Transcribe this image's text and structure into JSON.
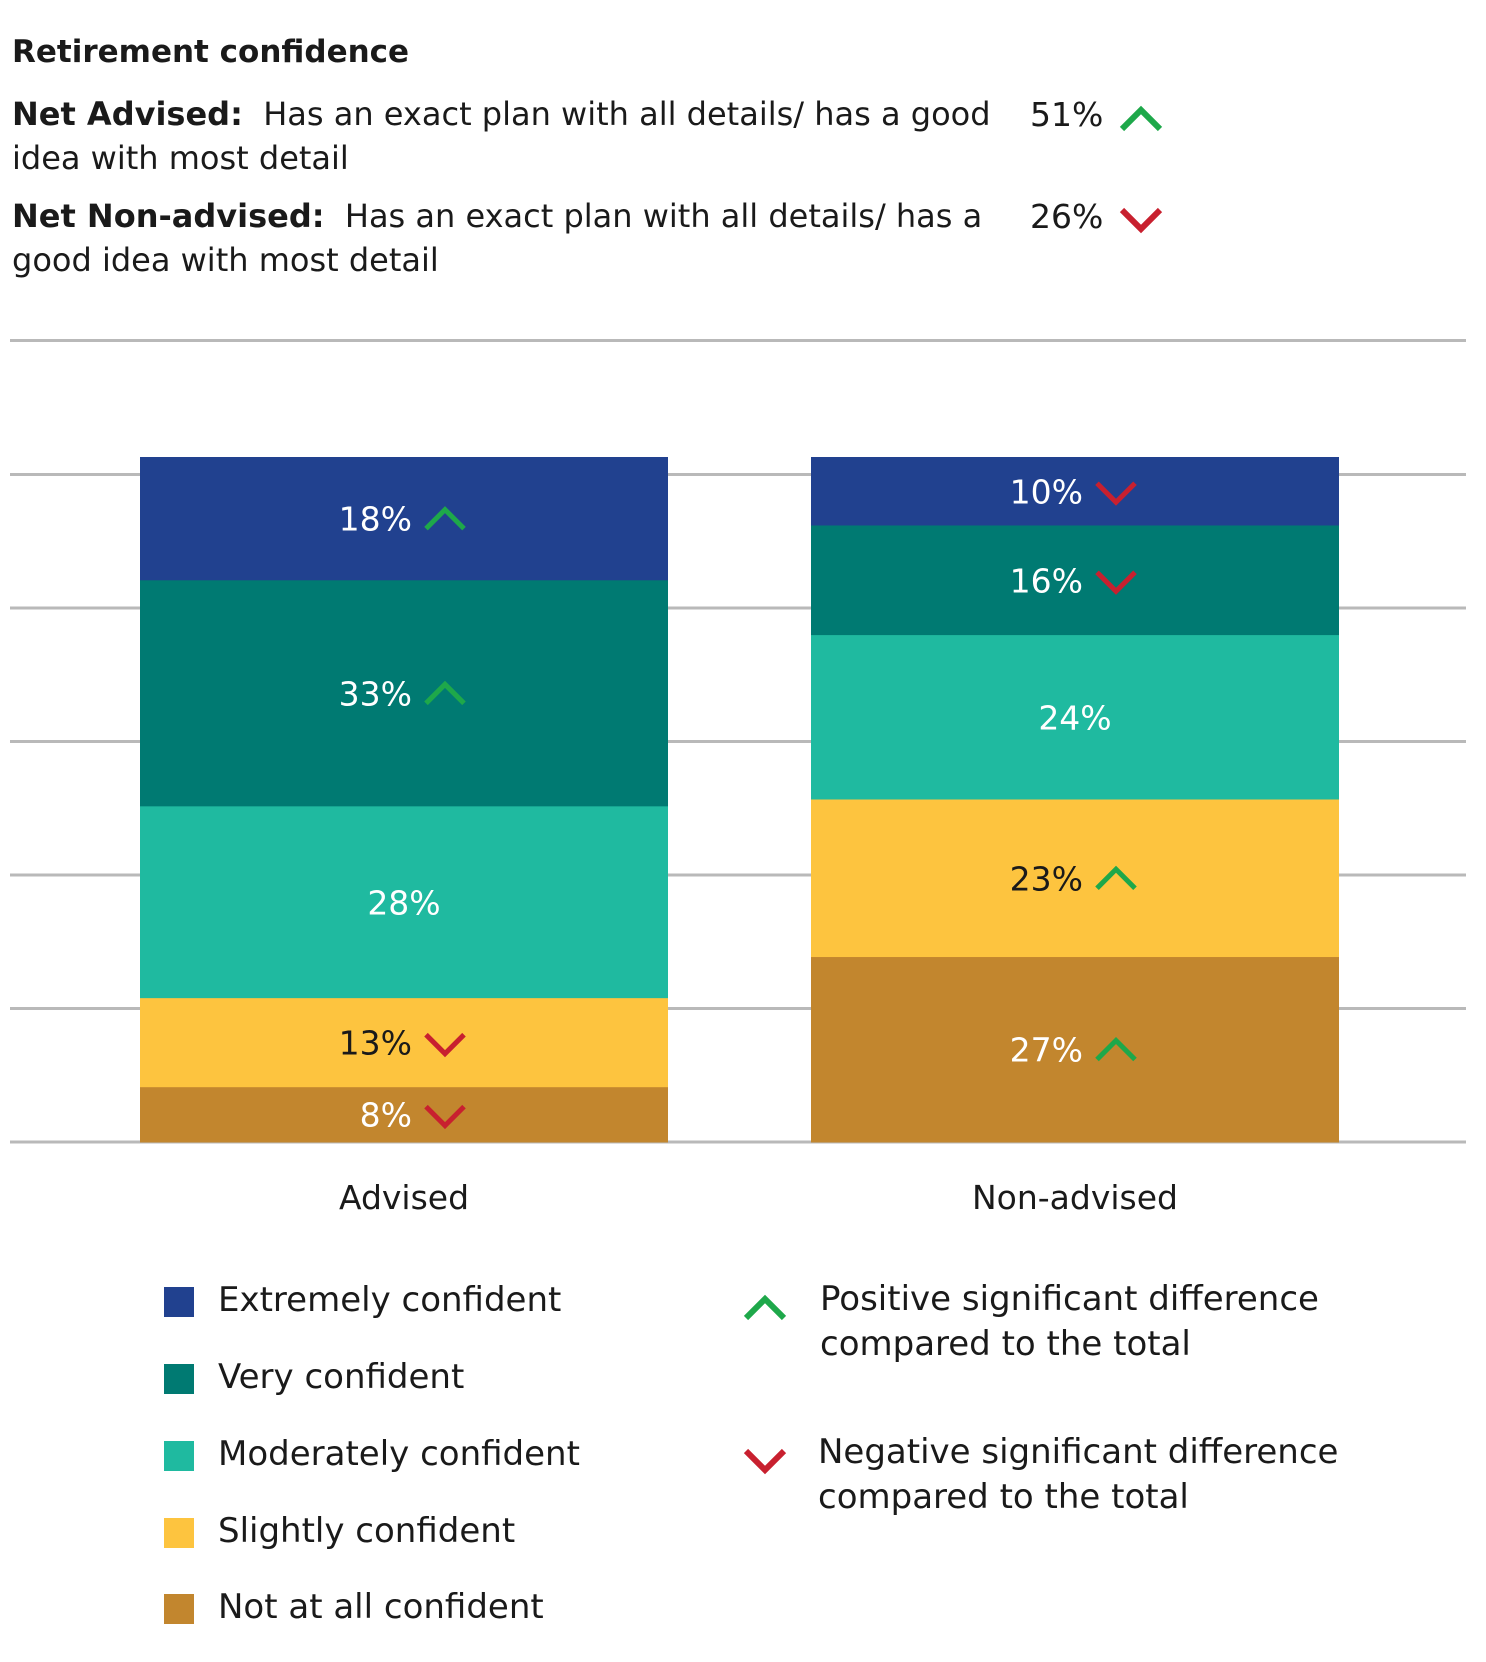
{
  "title": "Retirement confidence",
  "net": [
    {
      "label": "Net Advised:",
      "text": "Has an exact plan with all details/ has a good idea with most detail",
      "value": "51%",
      "direction": "up"
    },
    {
      "label": "Net Non-advised:",
      "text": "Has an exact plan with all details/ has a good idea with most detail",
      "value": "26%",
      "direction": "down"
    }
  ],
  "colors": {
    "extremely": "#21418f",
    "very": "#007a72",
    "moderately": "#1fbaa0",
    "slightly": "#fdc43f",
    "not_at_all": "#c2862e",
    "up_arrow": "#1ea84a",
    "down_arrow": "#c8202f",
    "grid": "#b9b9b9"
  },
  "chart_data": {
    "type": "bar",
    "stacked": true,
    "categories": [
      "Advised",
      "Non-advised"
    ],
    "series": [
      {
        "name": "Extremely confident",
        "values": [
          18,
          10
        ],
        "labels": [
          "18%",
          "10%"
        ],
        "sig": [
          "up",
          "down"
        ],
        "color": "#21418f"
      },
      {
        "name": "Very confident",
        "values": [
          33,
          16
        ],
        "labels": [
          "33%",
          "16%"
        ],
        "sig": [
          "up",
          "down"
        ],
        "color": "#007a72"
      },
      {
        "name": "Moderately confident",
        "values": [
          28,
          24
        ],
        "labels": [
          "28%",
          "24%"
        ],
        "sig": [
          "",
          ""
        ],
        "color": "#1fbaa0"
      },
      {
        "name": "Slightly confident",
        "values": [
          13,
          23
        ],
        "labels": [
          "13%",
          "23%"
        ],
        "sig": [
          "down",
          "up"
        ],
        "color": "#fdc43f"
      },
      {
        "name": "Not at all confident",
        "values": [
          8,
          27
        ],
        "labels": [
          "8%",
          "27%"
        ],
        "sig": [
          "down",
          "up"
        ],
        "color": "#c2862e"
      }
    ],
    "grid": true,
    "legend_position": "bottom"
  },
  "significance_legend": [
    {
      "direction": "up",
      "text": "Positive significant difference compared to the total"
    },
    {
      "direction": "down",
      "text": "Negative significant difference compared to the total"
    }
  ]
}
